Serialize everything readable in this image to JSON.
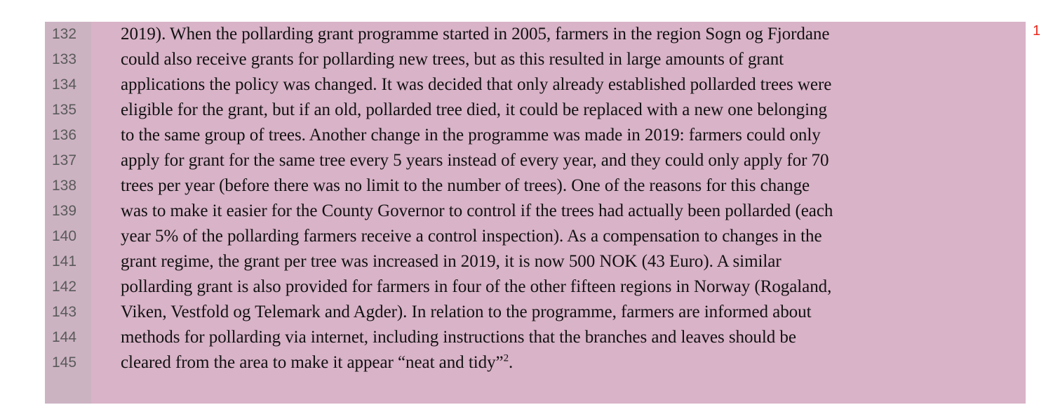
{
  "document": {
    "lines": [
      {
        "number": "132",
        "text": "2019). When the pollarding grant programme started in 2005, farmers in the region Sogn og Fjordane"
      },
      {
        "number": "133",
        "text": "could also receive grants for pollarding new trees, but as this resulted in large amounts of grant"
      },
      {
        "number": "134",
        "text": "applications the policy was changed. It was decided that only already established pollarded trees were"
      },
      {
        "number": "135",
        "text": "eligible for the grant, but if an old, pollarded tree died, it could be replaced with a new one belonging"
      },
      {
        "number": "136",
        "text": "to the same group of trees. Another change in the programme was made in 2019: farmers could only"
      },
      {
        "number": "137",
        "text": "apply for grant for the same tree every 5 years instead of every year, and they could only apply for 70"
      },
      {
        "number": "138",
        "text": "trees per year (before there was no limit to the number of trees). One of the reasons for this change"
      },
      {
        "number": "139",
        "text": "was to make it easier for the County Governor to control if the trees had actually been pollarded (each"
      },
      {
        "number": "140",
        "text": "year 5% of the pollarding farmers receive a control inspection). As a compensation to changes in the"
      },
      {
        "number": "141",
        "text": "grant regime, the grant per tree was increased in 2019, it is now 500 NOK (43 Euro). A similar"
      },
      {
        "number": "142",
        "text": "pollarding grant is also provided for farmers in four of the other fifteen regions in Norway (Rogaland,"
      },
      {
        "number": "143",
        "text": "Viken, Vestfold og Telemark and Agder). In relation to the programme, farmers are informed about"
      },
      {
        "number": "144",
        "text": "methods for pollarding via internet, including instructions that the branches and leaves should be"
      },
      {
        "number": "145",
        "text": "cleared from the area to make it appear “neat and tidy”"
      }
    ],
    "last_line_footnote": "2",
    "last_line_end": ".",
    "margin_comment_marker": "1",
    "highlight_color": "#d9b3c8",
    "marker_color": "#e8281c"
  }
}
